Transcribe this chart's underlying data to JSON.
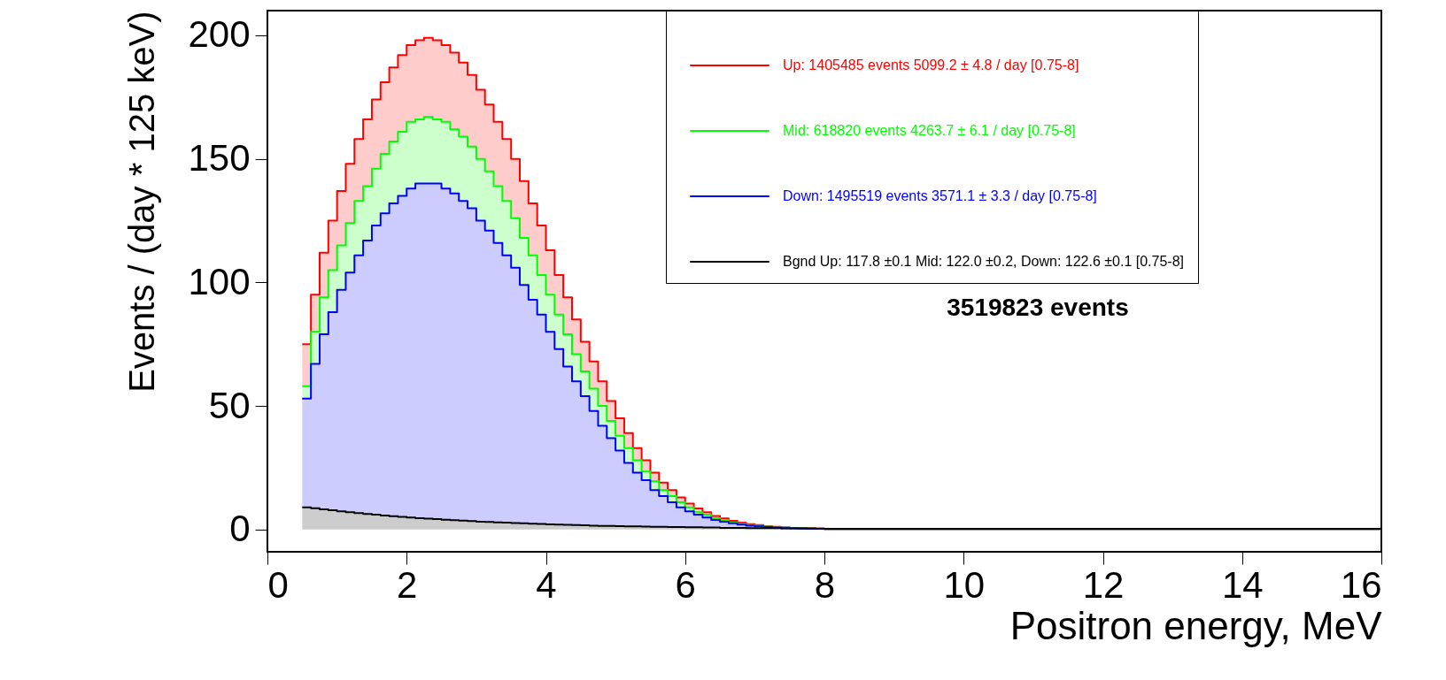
{
  "chart_data": {
    "type": "area",
    "xlabel": "Positron energy, MeV",
    "ylabel": "Events / (day * 125 keV)",
    "x": [
      0.5,
      0.625,
      0.75,
      0.875,
      1,
      1.125,
      1.25,
      1.375,
      1.5,
      1.625,
      1.75,
      1.875,
      2,
      2.125,
      2.25,
      2.375,
      2.5,
      2.625,
      2.75,
      2.875,
      3,
      3.125,
      3.25,
      3.375,
      3.5,
      3.625,
      3.75,
      3.875,
      4,
      4.125,
      4.25,
      4.375,
      4.5,
      4.625,
      4.75,
      4.875,
      5,
      5.125,
      5.25,
      5.375,
      5.5,
      5.625,
      5.75,
      5.875,
      6,
      6.125,
      6.25,
      6.375,
      6.5,
      6.625,
      6.75,
      6.875,
      7,
      7.125,
      7.25,
      7.375,
      7.5,
      7.625,
      7.75,
      7.875,
      8,
      16
    ],
    "series": [
      {
        "name": "Up: 1405485 events 5099.2 ± 4.8 / day [0.75-8]",
        "color": "#ff0000",
        "values": [
          75,
          95,
          112,
          125,
          137,
          148,
          158,
          166,
          174,
          181,
          187,
          192,
          196,
          198,
          199,
          198,
          196,
          193,
          189,
          184,
          178,
          172,
          165,
          158,
          150,
          141,
          132,
          123,
          113,
          103,
          94,
          85,
          76,
          68,
          60,
          52,
          45,
          39,
          33,
          28,
          23,
          19,
          16,
          13,
          10.5,
          8.5,
          7,
          5.5,
          4.5,
          3.5,
          2.8,
          2.2,
          1.8,
          1.4,
          1.1,
          0.9,
          0.7,
          0.6,
          0.5,
          0.4,
          0.2,
          0.2
        ]
      },
      {
        "name": "Mid: 618820 events 4263.7 ± 6.1 / day [0.75-8]",
        "color": "#00ff00",
        "values": [
          58,
          80,
          94,
          105,
          115,
          124,
          133,
          139,
          146,
          152,
          157,
          161,
          165,
          166,
          167,
          166,
          165,
          162,
          159,
          155,
          150,
          145,
          139,
          133,
          126,
          118,
          111,
          103,
          95,
          87,
          79,
          71,
          64,
          57,
          50,
          44,
          38,
          33,
          28,
          23.5,
          19.5,
          16,
          13.5,
          11,
          9,
          7,
          6,
          4.6,
          3.8,
          2.9,
          2.4,
          1.8,
          1.5,
          1.2,
          0.9,
          0.8,
          0.6,
          0.5,
          0.4,
          0.3,
          0.2,
          0.2
        ]
      },
      {
        "name": "Down: 1495519 events 3571.1 ± 3.3 / day [0.75-8]",
        "color": "#0000ff",
        "values": [
          53,
          67,
          79,
          88,
          97,
          104,
          111,
          117,
          123,
          128,
          132,
          135,
          138,
          140,
          140,
          140,
          138,
          136,
          133,
          130,
          125,
          121,
          116,
          111,
          106,
          99,
          93,
          87,
          80,
          73,
          66,
          60,
          54,
          48,
          42,
          37,
          32,
          27,
          23,
          20,
          16,
          13.5,
          11,
          9,
          7.4,
          6,
          4.9,
          3.9,
          3.2,
          2.5,
          2,
          1.6,
          1.3,
          1,
          0.8,
          0.6,
          0.5,
          0.4,
          0.3,
          0.3,
          0.2,
          0.2
        ]
      },
      {
        "name": "Bgnd Up: 117.8 ±0.1 Mid: 122.0 ±0.2, Down: 122.6 ±0.1 [0.75-8]",
        "color": "#000000",
        "values": [
          9,
          8.6,
          8.2,
          7.8,
          7.4,
          7,
          6.7,
          6.3,
          6,
          5.7,
          5.4,
          5.1,
          4.9,
          4.6,
          4.4,
          4.2,
          4,
          3.8,
          3.6,
          3.4,
          3.2,
          3.1,
          2.9,
          2.8,
          2.6,
          2.5,
          2.4,
          2.3,
          2.1,
          2,
          1.9,
          1.8,
          1.7,
          1.6,
          1.5,
          1.5,
          1.4,
          1.3,
          1.3,
          1.2,
          1.1,
          1.1,
          1,
          1,
          0.9,
          0.9,
          0.8,
          0.8,
          0.7,
          0.7,
          0.7,
          0.6,
          0.6,
          0.6,
          0.6,
          0.5,
          0.5,
          0.5,
          0.5,
          0.4,
          0.3,
          0.3
        ]
      }
    ],
    "xlim": [
      0,
      16
    ],
    "xticks": [
      0,
      2,
      4,
      6,
      8,
      10,
      12,
      14,
      16
    ],
    "ylim": [
      -9,
      210
    ],
    "yticks": [
      0,
      50,
      100,
      150,
      200
    ],
    "annotations": [
      "3519823 events"
    ],
    "legend": "top right",
    "grid": false
  }
}
